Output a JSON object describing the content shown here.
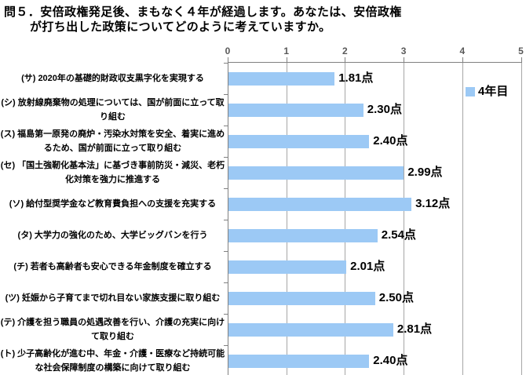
{
  "title": {
    "line1": "問５．安倍政権発足後、まもなく４年が経過します。あなたは、安倍政権",
    "line2": "が打ち出した政策についてどのように考えていますか。"
  },
  "legend": {
    "label": "4年目"
  },
  "colors": {
    "bar": "#9CC9F5",
    "gridline": "#A6A6A6",
    "axis_line": "#808080",
    "text": "#000000",
    "tick_label": "#595959"
  },
  "chart_data": {
    "type": "bar",
    "orientation": "horizontal",
    "title": "問５．安倍政権発足後、まもなく４年が経過します。あなたは、安倍政権が打ち出した政策についてどのように考えていますか。",
    "categories": [
      "(サ) 2020年の基礎的財政収支黒字化を実現する",
      "(シ) 放射線廃棄物の処理については、国が前面に立って取り組む",
      "(ス) 福島第一原発の廃炉・汚染水対策を安全、着実に進めるため、国が前面に立って取り組む",
      "(セ) 「国土強靭化基本法」に基づき事前防災・減災、老朽化対策を強力に推進する",
      "(ソ) 給付型奨学金など教育費負担への支援を充実する",
      "(タ) 大学力の強化のため、大学ビッグバンを行う",
      "(チ) 若者も高齢者も安心できる年金制度を確立する",
      "(ツ) 妊娠から子育てまで切れ目ない家族支援に取り組む",
      "(テ) 介護を担う職員の処遇改善を行い、介護の充実に向けて取り組む",
      "(ト) 少子高齢化が進む中、年金・介護・医療など持続可能な社会保障制度の構築に向けて取り組む"
    ],
    "series": [
      {
        "name": "4年目",
        "values": [
          1.81,
          2.3,
          2.4,
          2.99,
          3.12,
          2.54,
          2.01,
          2.5,
          2.81,
          2.4
        ]
      }
    ],
    "value_labels": [
      "1.81点",
      "2.30点",
      "2.40点",
      "2.99点",
      "3.12点",
      "2.54点",
      "2.01点",
      "2.50点",
      "2.81点",
      "2.40点"
    ],
    "xlim": [
      0,
      5
    ],
    "x_ticks": [
      "0",
      "1",
      "2",
      "3",
      "4",
      "5"
    ],
    "grid": true,
    "legend_position": "inside-right"
  }
}
